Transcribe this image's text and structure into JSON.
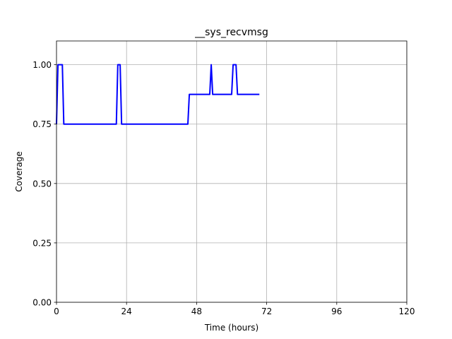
{
  "chart_data": {
    "type": "line",
    "title": "__sys_recvmsg",
    "xlabel": "Time (hours)",
    "ylabel": "Coverage",
    "xlim": [
      0,
      120
    ],
    "ylim": [
      0,
      1.1
    ],
    "xticks": [
      0,
      24,
      48,
      72,
      96,
      120
    ],
    "yticks": [
      0.0,
      0.25,
      0.5,
      0.75,
      1.0
    ],
    "xtick_labels": [
      "0",
      "24",
      "48",
      "72",
      "96",
      "120"
    ],
    "ytick_labels": [
      "0.00",
      "0.25",
      "0.50",
      "0.75",
      "1.00"
    ],
    "grid": true,
    "series": [
      {
        "color": "#0000ff",
        "x": [
          0,
          0.5,
          2.0,
          2.5,
          20.5,
          21.0,
          21.8,
          22.3,
          45.0,
          45.5,
          52.5,
          53.0,
          53.5,
          60.0,
          60.5,
          61.5,
          62.0,
          69.5
        ],
        "y": [
          0.75,
          1.0,
          1.0,
          0.75,
          0.75,
          1.0,
          1.0,
          0.75,
          0.75,
          0.875,
          0.875,
          1.0,
          0.875,
          0.875,
          1.0,
          1.0,
          0.875,
          0.875
        ]
      }
    ]
  }
}
